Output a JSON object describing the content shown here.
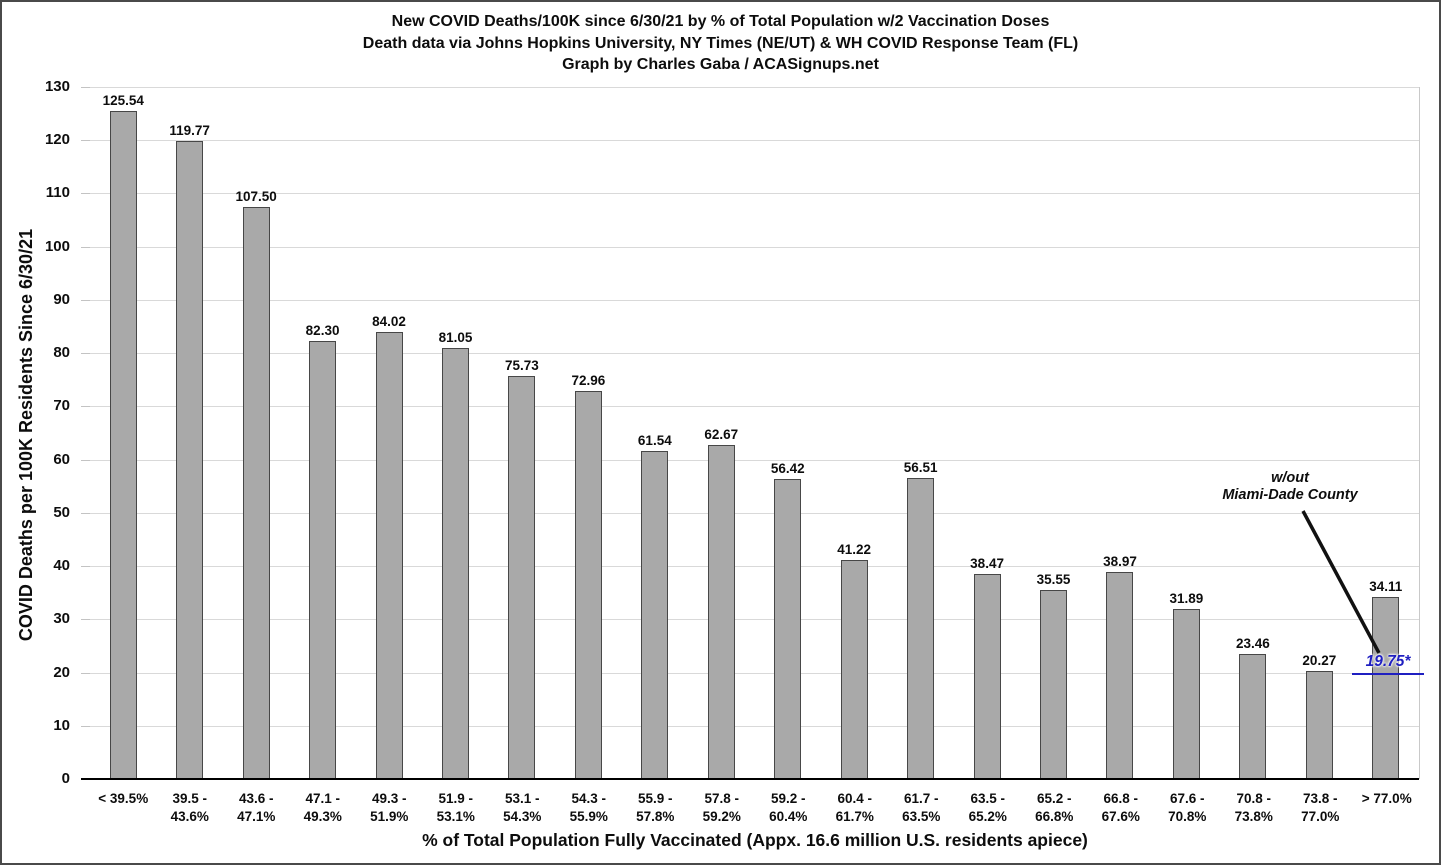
{
  "chart_data": {
    "type": "bar",
    "title": "New COVID Deaths/100K since 6/30/21 by % of Total Population w/2 Vaccination Doses",
    "subtitle1": "Death data via Johns Hopkins University, NY Times (NE/UT) & WH COVID Response Team (FL)",
    "subtitle2": "Graph by Charles Gaba / ACASignups.net",
    "xlabel": "% of Total Population Fully Vaccinated (Appx. 16.6 million U.S. residents apiece)",
    "ylabel": "COVID Deaths per 100K Residents Since 6/30/21",
    "ylim": [
      0,
      130
    ],
    "ytick_step": 10,
    "grid": true,
    "legend": "none",
    "bar_color": "#a9a9a9",
    "bar_border_color": "#474747",
    "categories": [
      "< 39.5%",
      "39.5 -\n43.6%",
      "43.6 -\n47.1%",
      "47.1 -\n49.3%",
      "49.3 -\n51.9%",
      "51.9 -\n53.1%",
      "53.1 -\n54.3%",
      "54.3 -\n55.9%",
      "55.9 -\n57.8%",
      "57.8 -\n59.2%",
      "59.2 -\n60.4%",
      "60.4 -\n61.7%",
      "61.7 -\n63.5%",
      "63.5 -\n65.2%",
      "65.2 -\n66.8%",
      "66.8 -\n67.6%",
      "67.6 -\n70.8%",
      "70.8 -\n73.8%",
      "73.8 -\n77.0%",
      "> 77.0%"
    ],
    "values": [
      125.54,
      119.77,
      107.5,
      82.3,
      84.02,
      81.05,
      75.73,
      72.96,
      61.54,
      62.67,
      56.42,
      41.22,
      56.51,
      38.47,
      35.55,
      38.97,
      31.89,
      23.46,
      20.27,
      34.11
    ],
    "annotation": {
      "text": "w/out\nMiami-Dade County",
      "value_label": "19.75*",
      "value_color": "#1f1fc1",
      "applies_to_category": "> 77.0%",
      "line_color": "#111111"
    }
  }
}
